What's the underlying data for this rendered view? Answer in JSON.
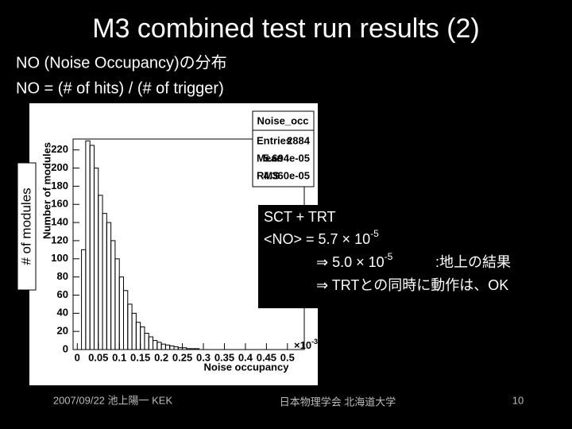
{
  "slide": {
    "title": "M3 combined test run results (2)",
    "subtitle": [
      "NO (Noise Occupancy)の分布",
      "NO = (# of hits) / (# of trigger)"
    ],
    "side_label": "# of modules",
    "box": {
      "line1": "SCT + TRT",
      "line2": {
        "text": "<NO>   = 5.7 × 10",
        "sup": "-5"
      },
      "line3": {
        "text": "⇒ 5.0 × 10",
        "sup": "-5",
        "tail": ":地上の結果"
      },
      "line4": "⇒ TRTとの同時に動作は、OK"
    },
    "footer": {
      "left": "2007/09/22 池上陽一 KEK",
      "center": "日本物理学会 北海道大学",
      "page": "10"
    }
  },
  "chart_data": {
    "type": "histogram",
    "x_label": "Noise occupancy",
    "y_label": "Number of modules",
    "x_multiplier": {
      "base": "×10",
      "exp": "-3"
    },
    "stats": {
      "name": "Noise_occ",
      "rows": [
        [
          "Entries",
          "2884"
        ],
        [
          "Mean",
          "5.694e-05"
        ],
        [
          "RMS",
          "4.360e-05"
        ]
      ]
    },
    "bins": [
      0,
      0.01,
      0.02,
      0.03,
      0.04,
      0.05,
      0.06,
      0.07,
      0.08,
      0.09,
      0.1,
      0.11,
      0.12,
      0.13,
      0.14,
      0.15,
      0.16,
      0.17,
      0.18,
      0.19,
      0.2,
      0.21,
      0.22,
      0.23,
      0.24,
      0.25,
      0.26,
      0.27,
      0.28,
      0.29,
      0.3
    ],
    "values": [
      0,
      110,
      230,
      225,
      200,
      170,
      150,
      140,
      120,
      100,
      80,
      65,
      50,
      40,
      30,
      25,
      18,
      14,
      10,
      8,
      6,
      5,
      4,
      3,
      2,
      2,
      1,
      1,
      1,
      0
    ],
    "color": "#000000",
    "xlim": [
      -0.01,
      0.54
    ],
    "ylim": [
      0,
      232
    ],
    "xticks": [
      0,
      0.05,
      0.1,
      0.15,
      0.2,
      0.25,
      0.3,
      0.35,
      0.4,
      0.45,
      0.5
    ],
    "yticks": [
      0,
      20,
      40,
      60,
      80,
      100,
      120,
      140,
      160,
      180,
      200,
      220
    ]
  }
}
